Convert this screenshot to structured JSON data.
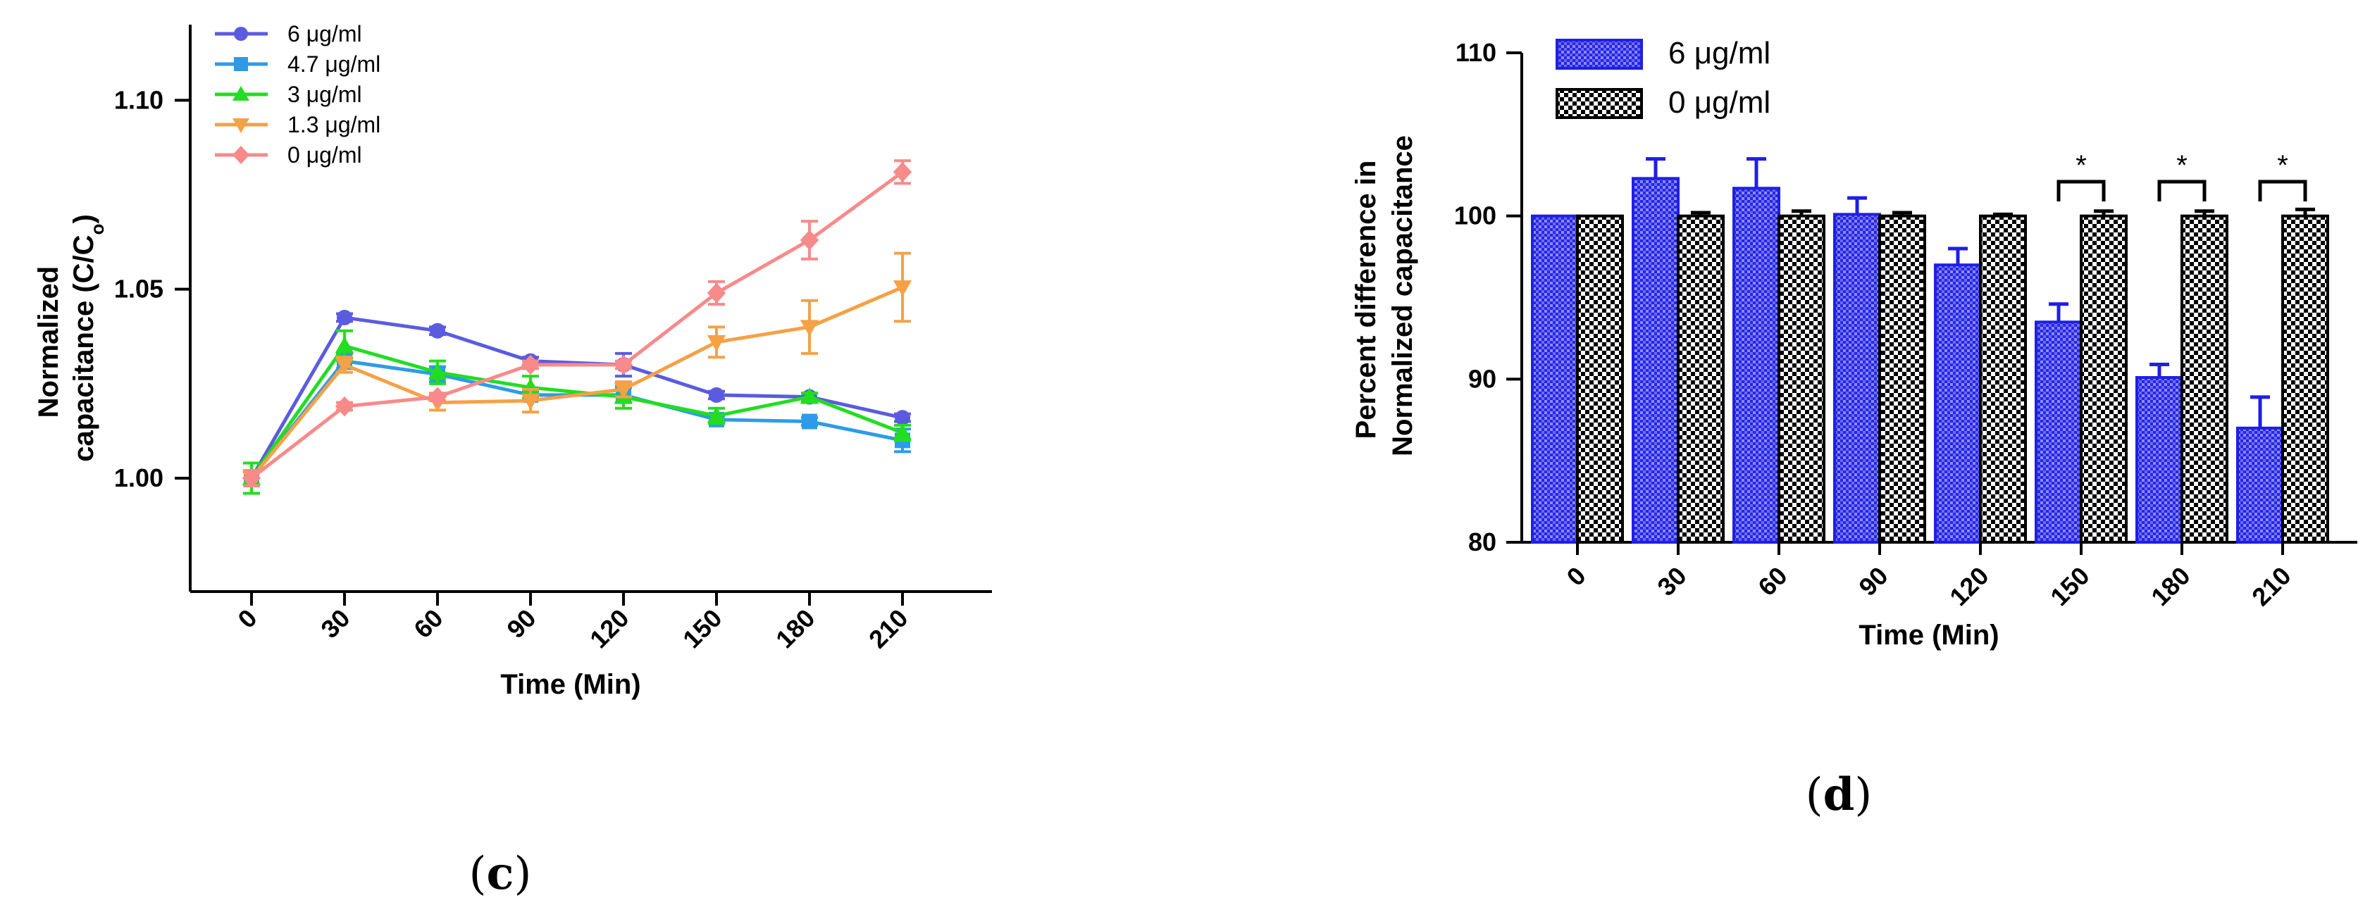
{
  "chart_data": [
    {
      "type": "line",
      "panel_label_parts": [
        "(",
        "c",
        ")"
      ],
      "xlabel": "Time (Min)",
      "ylabel_lines": [
        "Normalized",
        "capacitance (C/C",
        "o",
        ")"
      ],
      "x": [
        0,
        30,
        60,
        90,
        120,
        150,
        180,
        210
      ],
      "ylim": [
        0.97,
        1.12
      ],
      "yticks": [
        1.0,
        1.05,
        1.1
      ],
      "ytick_labels": [
        "1.00",
        "1.05",
        "1.10"
      ],
      "legend_position": "top-left",
      "series": [
        {
          "name": "6 μg/ml",
          "color": "#5B5BE0",
          "marker": "circle",
          "values": [
            1.0,
            1.0425,
            1.039,
            1.031,
            1.03,
            1.022,
            1.0215,
            1.016
          ],
          "errors": [
            0.002,
            0.001,
            0.001,
            0.001,
            0.003,
            0.001,
            0.001,
            0.001
          ]
        },
        {
          "name": "4.7 μg/ml",
          "color": "#2E9BE8",
          "marker": "square",
          "values": [
            1.0,
            1.031,
            1.0275,
            1.022,
            1.022,
            1.0155,
            1.015,
            1.01
          ],
          "errors": [
            0.002,
            0.002,
            0.002,
            0.001,
            0.002,
            0.001,
            0.001,
            0.003
          ]
        },
        {
          "name": "3 μg/ml",
          "color": "#22DD22",
          "marker": "triangle-up",
          "values": [
            1.0,
            1.035,
            1.028,
            1.024,
            1.0215,
            1.0165,
            1.0215,
            1.012
          ],
          "errors": [
            0.004,
            0.004,
            0.003,
            0.003,
            0.003,
            0.002,
            0.001,
            0.002
          ]
        },
        {
          "name": "1.3 μg/ml",
          "color": "#F5A146",
          "marker": "triangle-down",
          "values": [
            1.0,
            1.03,
            1.02,
            1.0205,
            1.0235,
            1.036,
            1.04,
            1.0505
          ],
          "errors": [
            0.002,
            0.002,
            0.002,
            0.003,
            0.002,
            0.004,
            0.007,
            0.009
          ]
        },
        {
          "name": "0 μg/ml",
          "color": "#F88A8A",
          "marker": "diamond",
          "values": [
            1.0,
            1.019,
            1.0215,
            1.03,
            1.03,
            1.049,
            1.063,
            1.081
          ],
          "errors": [
            0.002,
            0.001,
            0.001,
            0.001,
            0.001,
            0.003,
            0.005,
            0.003
          ]
        }
      ]
    },
    {
      "type": "bar",
      "panel_label_parts": [
        "(",
        "d",
        ")"
      ],
      "xlabel": "Time (Min)",
      "ylabel_lines": [
        "Percent difference in",
        "Normalized capacitance"
      ],
      "categories": [
        "0",
        "30",
        "60",
        "90",
        "120",
        "150",
        "180",
        "210"
      ],
      "ylim": [
        80,
        110
      ],
      "yticks": [
        80,
        90,
        100,
        110
      ],
      "legend_position": "top-left",
      "significance_marker": "*",
      "significant_categories": [
        "150",
        "180",
        "210"
      ],
      "series": [
        {
          "name": "6 μg/ml",
          "color": "#1F1FE6",
          "pattern": "hatched-blue",
          "values": [
            100,
            102.3,
            101.7,
            100.1,
            97,
            93.5,
            90.1,
            87
          ],
          "errors": [
            0,
            1.2,
            1.8,
            1.0,
            1.0,
            1.1,
            0.8,
            1.9
          ]
        },
        {
          "name": "0 μg/ml",
          "color": "#000000",
          "pattern": "checkerboard",
          "values": [
            100,
            100,
            100,
            100,
            100,
            100,
            100,
            100
          ],
          "errors": [
            0,
            0.2,
            0.3,
            0.2,
            0.1,
            0.3,
            0.3,
            0.4
          ]
        }
      ]
    }
  ]
}
